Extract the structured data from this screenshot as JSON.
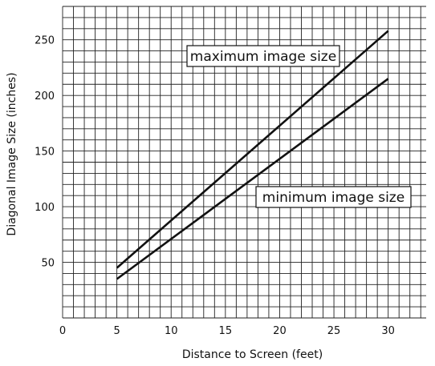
{
  "chart_data": {
    "type": "line",
    "xlabel": "Distance to Screen (feet)",
    "ylabel": "Diagonal Image Size (inches)",
    "xlim": [
      0,
      33.5
    ],
    "ylim": [
      0,
      280
    ],
    "x_ticks": [
      0,
      5,
      10,
      15,
      20,
      25,
      30
    ],
    "y_ticks": [
      50,
      100,
      150,
      200,
      250
    ],
    "x_tick_labels": [
      "0",
      "5",
      "10",
      "15",
      "20",
      "25",
      "30"
    ],
    "y_tick_labels": [
      "50",
      "100",
      "150",
      "200",
      "250"
    ],
    "grid": true,
    "series": [
      {
        "name": "maximum image size",
        "x": [
          5,
          30
        ],
        "y": [
          45,
          258
        ]
      },
      {
        "name": "minimum image size",
        "x": [
          5,
          30
        ],
        "y": [
          35,
          215
        ]
      }
    ],
    "annotations": [
      {
        "text": "maximum image size",
        "series": 0
      },
      {
        "text": "minimum image size",
        "series": 1
      }
    ],
    "line_color": "#111111",
    "grid_color": "#222222"
  }
}
